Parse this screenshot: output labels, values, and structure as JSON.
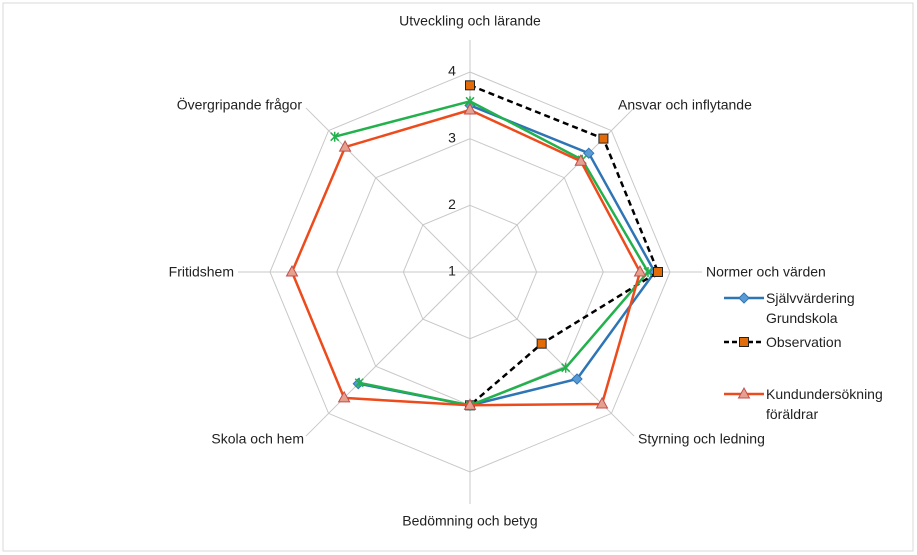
{
  "chart_data": {
    "type": "radar",
    "categories": [
      "Utveckling och lärande",
      "Ansvar och inflytande",
      "Normer och värden",
      "Styrning och ledning",
      "Bedömning och betyg",
      "Skola och hem",
      "Fritidshem",
      "Övergripande frågor"
    ],
    "ylim": [
      1,
      4
    ],
    "yticks": [
      1,
      2,
      3,
      4
    ],
    "grid": true,
    "legend": "right",
    "series": [
      {
        "name": "Självvärdering Grundskola",
        "color": "#2e75b6",
        "marker": "diamond",
        "values": [
          3.5,
          3.52,
          3.77,
          3.27,
          3.0,
          3.37,
          null,
          null
        ]
      },
      {
        "name": "Observation",
        "color": "#000000",
        "marker": "square",
        "dashed": true,
        "values": [
          3.8,
          3.83,
          3.82,
          2.52,
          3.0,
          null,
          null,
          null
        ]
      },
      {
        "color": "#22b14c",
        "marker": "x",
        "values": [
          3.56,
          3.38,
          3.67,
          3.03,
          3.0,
          3.35,
          null,
          3.87
        ]
      },
      {
        "name": "Kundundersökning föräldrar",
        "color": "#ed4b1c",
        "marker": "triangle",
        "values": [
          3.43,
          3.35,
          3.55,
          3.8,
          3.0,
          3.67,
          3.67,
          3.65
        ]
      }
    ]
  }
}
